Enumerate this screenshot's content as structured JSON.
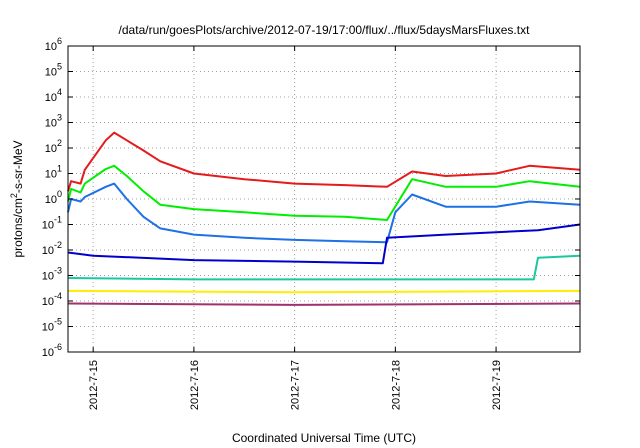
{
  "chart_data": {
    "type": "line",
    "title": "/data/run/goesPlots/archive/2012-07-19/17:00/flux/../flux/5daysMarsFluxes.txt",
    "xlabel": "Coordinated Universal Time (UTC)",
    "ylabel": "protons/cm²-s-sr-MeV",
    "ylabel_parts": {
      "pre": "protons/cm",
      "sup": "2",
      "post": "-s-sr-MeV"
    },
    "y_scale": "log",
    "ylim": [
      1e-06,
      1000000.0
    ],
    "y_ticks": [
      {
        "value": 1e-06,
        "base": "10",
        "exp": "-6"
      },
      {
        "value": 1e-05,
        "base": "10",
        "exp": "-5"
      },
      {
        "value": 0.0001,
        "base": "10",
        "exp": "-4"
      },
      {
        "value": 0.001,
        "base": "10",
        "exp": "-3"
      },
      {
        "value": 0.01,
        "base": "10",
        "exp": "-2"
      },
      {
        "value": 0.1,
        "base": "10",
        "exp": "-1"
      },
      {
        "value": 1,
        "base": "10",
        "exp": "0"
      },
      {
        "value": 10,
        "base": "10",
        "exp": "1"
      },
      {
        "value": 100,
        "base": "10",
        "exp": "2"
      },
      {
        "value": 1000,
        "base": "10",
        "exp": "3"
      },
      {
        "value": 10000,
        "base": "10",
        "exp": "4"
      },
      {
        "value": 100000,
        "base": "10",
        "exp": "5"
      },
      {
        "value": 1000000,
        "base": "10",
        "exp": "6"
      }
    ],
    "xlim": [
      "2012-07-14 18:00",
      "2012-07-19 20:00"
    ],
    "x_ticks": [
      {
        "value": "2012-07-15 00:00",
        "label": "2012-7-15"
      },
      {
        "value": "2012-07-16 00:00",
        "label": "2012-7-16"
      },
      {
        "value": "2012-07-17 00:00",
        "label": "2012-7-17"
      },
      {
        "value": "2012-07-18 00:00",
        "label": "2012-7-18"
      },
      {
        "value": "2012-07-19 00:00",
        "label": "2012-7-19"
      }
    ],
    "grid": true,
    "legend": "none",
    "series": [
      {
        "color": "#e41a1c",
        "points": [
          [
            "2012-07-14 18:00",
            2
          ],
          [
            "2012-07-14 18:45",
            5
          ],
          [
            "2012-07-14 21:00",
            4
          ],
          [
            "2012-07-14 22:00",
            14
          ],
          [
            "2012-07-15 03:00",
            200
          ],
          [
            "2012-07-15 05:00",
            400
          ],
          [
            "2012-07-15 08:00",
            200
          ],
          [
            "2012-07-15 12:00",
            80
          ],
          [
            "2012-07-15 16:00",
            30
          ],
          [
            "2012-07-16 00:00",
            10
          ],
          [
            "2012-07-16 12:00",
            6
          ],
          [
            "2012-07-17 00:00",
            4
          ],
          [
            "2012-07-17 12:00",
            3.5
          ],
          [
            "2012-07-17 22:00",
            3
          ],
          [
            "2012-07-18 04:00",
            12
          ],
          [
            "2012-07-18 12:00",
            8
          ],
          [
            "2012-07-19 00:00",
            10
          ],
          [
            "2012-07-19 08:00",
            20
          ],
          [
            "2012-07-19 20:00",
            14
          ]
        ]
      },
      {
        "color": "#00ee00",
        "points": [
          [
            "2012-07-14 18:00",
            0.8
          ],
          [
            "2012-07-14 18:45",
            2.5
          ],
          [
            "2012-07-14 21:00",
            1.8
          ],
          [
            "2012-07-14 22:00",
            4
          ],
          [
            "2012-07-15 03:00",
            15
          ],
          [
            "2012-07-15 05:00",
            20
          ],
          [
            "2012-07-15 08:00",
            8
          ],
          [
            "2012-07-15 12:00",
            2
          ],
          [
            "2012-07-15 16:00",
            0.6
          ],
          [
            "2012-07-16 00:00",
            0.4
          ],
          [
            "2012-07-16 12:00",
            0.3
          ],
          [
            "2012-07-17 00:00",
            0.22
          ],
          [
            "2012-07-17 12:00",
            0.2
          ],
          [
            "2012-07-17 22:00",
            0.15
          ],
          [
            "2012-07-18 04:00",
            6
          ],
          [
            "2012-07-18 12:00",
            3
          ],
          [
            "2012-07-19 00:00",
            3
          ],
          [
            "2012-07-19 08:00",
            5
          ],
          [
            "2012-07-19 20:00",
            3
          ]
        ]
      },
      {
        "color": "#1e70e6",
        "points": [
          [
            "2012-07-14 18:00",
            0.3
          ],
          [
            "2012-07-14 18:45",
            1
          ],
          [
            "2012-07-14 21:00",
            0.8
          ],
          [
            "2012-07-14 22:00",
            1.2
          ],
          [
            "2012-07-15 03:00",
            3
          ],
          [
            "2012-07-15 05:00",
            4
          ],
          [
            "2012-07-15 08:00",
            1
          ],
          [
            "2012-07-15 12:00",
            0.2
          ],
          [
            "2012-07-15 16:00",
            0.07
          ],
          [
            "2012-07-16 00:00",
            0.04
          ],
          [
            "2012-07-16 12:00",
            0.03
          ],
          [
            "2012-07-17 00:00",
            0.025
          ],
          [
            "2012-07-17 12:00",
            0.022
          ],
          [
            "2012-07-17 22:00",
            0.02
          ],
          [
            "2012-07-18 00:00",
            0.3
          ],
          [
            "2012-07-18 04:00",
            1.5
          ],
          [
            "2012-07-18 12:00",
            0.5
          ],
          [
            "2012-07-19 00:00",
            0.5
          ],
          [
            "2012-07-19 08:00",
            0.8
          ],
          [
            "2012-07-19 20:00",
            0.6
          ]
        ]
      },
      {
        "color": "#0000cc",
        "points": [
          [
            "2012-07-14 18:00",
            0.008
          ],
          [
            "2012-07-15 00:00",
            0.006
          ],
          [
            "2012-07-16 00:00",
            0.004
          ],
          [
            "2012-07-17 00:00",
            0.0035
          ],
          [
            "2012-07-17 21:00",
            0.003
          ],
          [
            "2012-07-17 22:00",
            0.03
          ],
          [
            "2012-07-18 12:00",
            0.04
          ],
          [
            "2012-07-19 00:00",
            0.05
          ],
          [
            "2012-07-19 10:00",
            0.06
          ],
          [
            "2012-07-19 20:00",
            0.1
          ]
        ]
      },
      {
        "color": "#19c8a0",
        "points": [
          [
            "2012-07-14 18:00",
            0.0008
          ],
          [
            "2012-07-16 00:00",
            0.0007
          ],
          [
            "2012-07-17 00:00",
            0.0007
          ],
          [
            "2012-07-18 00:00",
            0.0007
          ],
          [
            "2012-07-19 00:00",
            0.0007
          ],
          [
            "2012-07-19 09:00",
            0.0007
          ],
          [
            "2012-07-19 10:00",
            0.005
          ],
          [
            "2012-07-19 20:00",
            0.006
          ]
        ]
      },
      {
        "color": "#ffee00",
        "points": [
          [
            "2012-07-14 18:00",
            0.00025
          ],
          [
            "2012-07-17 00:00",
            0.00022
          ],
          [
            "2012-07-19 20:00",
            0.00025
          ]
        ]
      },
      {
        "color": "#a0306e",
        "points": [
          [
            "2012-07-14 18:00",
            8e-05
          ],
          [
            "2012-07-17 00:00",
            7e-05
          ],
          [
            "2012-07-19 20:00",
            8e-05
          ]
        ]
      }
    ]
  }
}
